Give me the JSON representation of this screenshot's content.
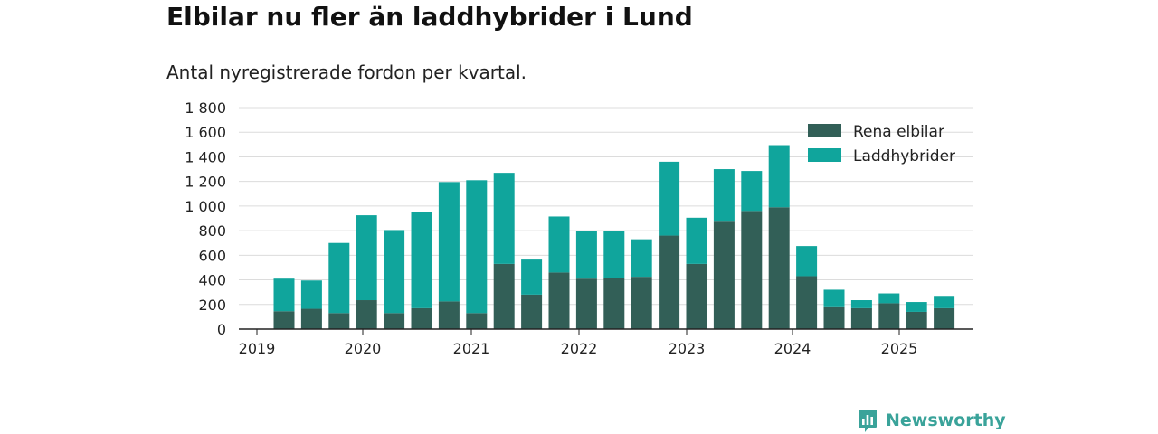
{
  "header": {
    "title": "Elbilar nu fler än laddhybrider i Lund",
    "subtitle": "Antal nyregistrerade fordon per kvartal."
  },
  "brand": {
    "name": "Newsworthy",
    "logo_icon": "chart-badge-icon",
    "color": "#3aa39a"
  },
  "chart_data": {
    "type": "bar",
    "stacked": true,
    "title": "Elbilar nu fler än laddhybrider i Lund",
    "subtitle": "Antal nyregistrerade fordon per kvartal.",
    "xlabel": "",
    "ylabel": "",
    "ylim": [
      0,
      1800
    ],
    "yticks": [
      0,
      200,
      400,
      600,
      800,
      1000,
      1200,
      1400,
      1600,
      1800
    ],
    "ytick_labels": [
      "0",
      "200",
      "400",
      "600",
      "800",
      "1 000",
      "1 200",
      "1 400",
      "1 600",
      "1 800"
    ],
    "xticks": [
      "2019",
      "2020",
      "2021",
      "2022",
      "2023",
      "2024",
      "2025"
    ],
    "categories": [
      "2019 Q2",
      "2019 Q3",
      "2019 Q4",
      "2020 Q1",
      "2020 Q2",
      "2020 Q3",
      "2020 Q4",
      "2021 Q1",
      "2021 Q2",
      "2021 Q3",
      "2021 Q4",
      "2022 Q1",
      "2022 Q2",
      "2022 Q3",
      "2022 Q4",
      "2023 Q1",
      "2023 Q2",
      "2023 Q3",
      "2023 Q4",
      "2024 Q1",
      "2024 Q2",
      "2024 Q3",
      "2024 Q4",
      "2025 Q1",
      "2025 Q2"
    ],
    "series": [
      {
        "name": "Rena elbilar",
        "color": "#325f57",
        "values": [
          145,
          165,
          130,
          235,
          130,
          170,
          225,
          130,
          530,
          280,
          460,
          410,
          415,
          425,
          760,
          530,
          880,
          960,
          990,
          430,
          185,
          170,
          210,
          140,
          170
        ]
      },
      {
        "name": "Laddhybrider",
        "color": "#10a59c",
        "values": [
          265,
          230,
          570,
          690,
          675,
          780,
          970,
          1080,
          740,
          285,
          455,
          390,
          380,
          305,
          600,
          375,
          420,
          325,
          505,
          245,
          135,
          65,
          80,
          80,
          100
        ]
      }
    ],
    "grid": true,
    "legend": "top-right"
  }
}
